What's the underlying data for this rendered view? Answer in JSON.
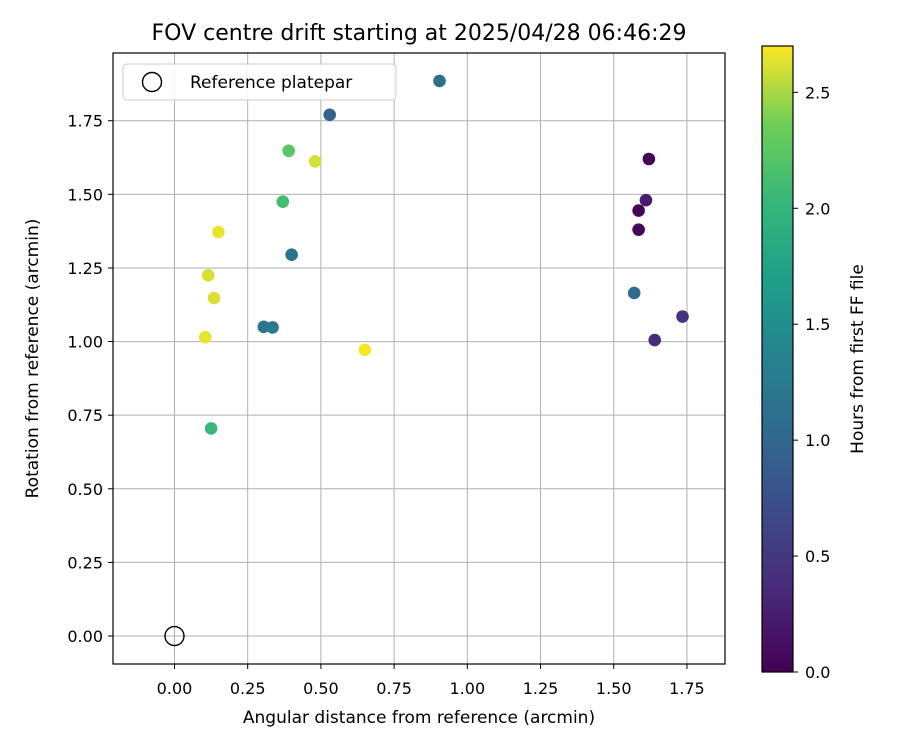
{
  "chart_data": {
    "type": "scatter",
    "title": "FOV centre drift starting at 2025/04/28 06:46:29",
    "xlabel": "Angular distance from reference (arcmin)",
    "ylabel": "Rotation from reference (arcmin)",
    "xlim": [
      -0.21,
      1.88
    ],
    "ylim": [
      -0.095,
      1.98
    ],
    "xticks": [
      0.0,
      0.25,
      0.5,
      0.75,
      1.0,
      1.25,
      1.5,
      1.75
    ],
    "xtick_labels": [
      "0.00",
      "0.25",
      "0.50",
      "0.75",
      "1.00",
      "1.25",
      "1.50",
      "1.75"
    ],
    "yticks": [
      0.0,
      0.25,
      0.5,
      0.75,
      1.0,
      1.25,
      1.5,
      1.75
    ],
    "ytick_labels": [
      "0.00",
      "0.25",
      "0.50",
      "0.75",
      "1.00",
      "1.25",
      "1.50",
      "1.75"
    ],
    "grid": true,
    "colormap": "viridis",
    "colorbar": {
      "label": "Hours from first FF file",
      "range": [
        0.0,
        2.7
      ],
      "ticks": [
        0.0,
        0.5,
        1.0,
        1.5,
        2.0,
        2.5
      ],
      "tick_labels": [
        "0.0",
        "0.5",
        "1.0",
        "1.5",
        "2.0",
        "2.5"
      ]
    },
    "legend": {
      "placement": "top-left",
      "entries": [
        {
          "label": "Reference platepar",
          "marker": "open-circle"
        }
      ]
    },
    "reference_point": {
      "x": 0.0,
      "y": 0.0
    },
    "points": [
      {
        "x": 1.62,
        "y": 1.62,
        "c": 0.02
      },
      {
        "x": 1.585,
        "y": 1.445,
        "c": 0.03
      },
      {
        "x": 1.585,
        "y": 1.38,
        "c": 0.04
      },
      {
        "x": 1.61,
        "y": 1.48,
        "c": 0.25
      },
      {
        "x": 1.735,
        "y": 1.085,
        "c": 0.45
      },
      {
        "x": 1.64,
        "y": 1.005,
        "c": 0.4
      },
      {
        "x": 1.57,
        "y": 1.165,
        "c": 1.05
      },
      {
        "x": 0.905,
        "y": 1.885,
        "c": 1.1
      },
      {
        "x": 0.53,
        "y": 1.77,
        "c": 0.95
      },
      {
        "x": 0.4,
        "y": 1.295,
        "c": 1.15
      },
      {
        "x": 0.305,
        "y": 1.05,
        "c": 1.2
      },
      {
        "x": 0.335,
        "y": 1.048,
        "c": 1.25
      },
      {
        "x": 0.39,
        "y": 1.648,
        "c": 2.25
      },
      {
        "x": 0.37,
        "y": 1.475,
        "c": 2.1
      },
      {
        "x": 0.125,
        "y": 0.705,
        "c": 2.05
      },
      {
        "x": 0.48,
        "y": 1.612,
        "c": 2.6
      },
      {
        "x": 0.15,
        "y": 1.372,
        "c": 2.65
      },
      {
        "x": 0.115,
        "y": 1.225,
        "c": 2.6
      },
      {
        "x": 0.135,
        "y": 1.148,
        "c": 2.62
      },
      {
        "x": 0.105,
        "y": 1.015,
        "c": 2.65
      },
      {
        "x": 0.65,
        "y": 0.972,
        "c": 2.68
      }
    ]
  }
}
